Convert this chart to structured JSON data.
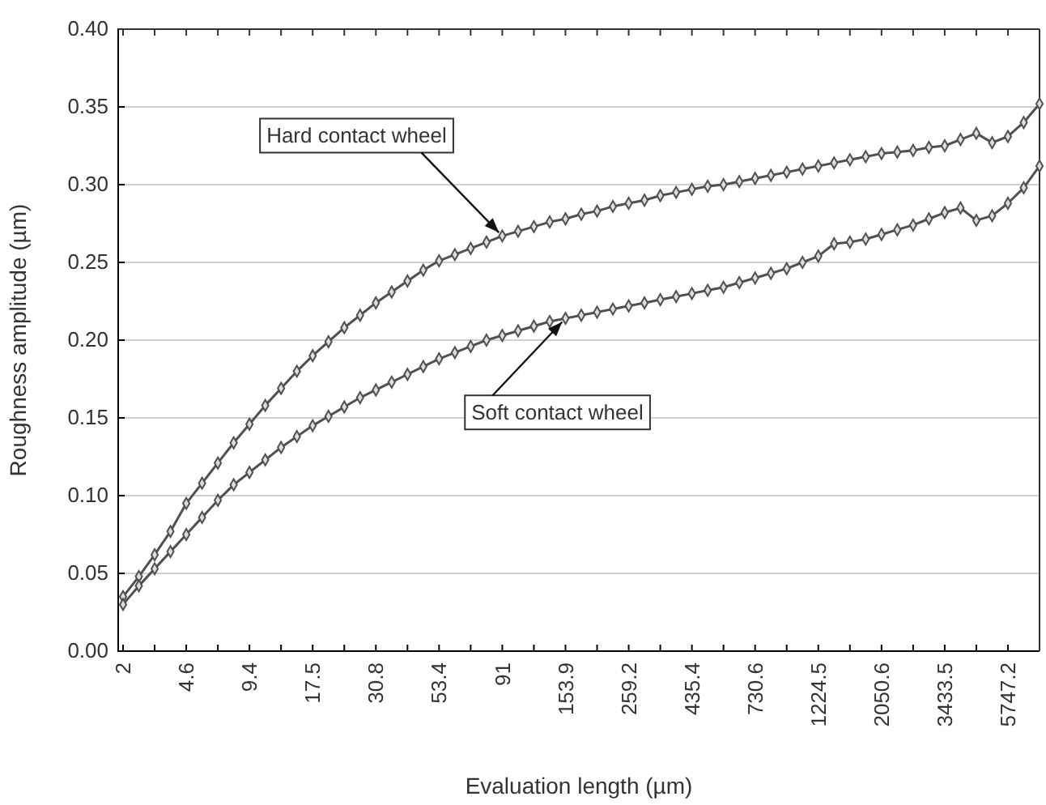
{
  "chart_data": {
    "type": "line",
    "xlabel": "Evaluation length (µm)",
    "ylabel": "Roughness amplitude (µm)",
    "categories": [
      "2",
      null,
      null,
      null,
      "4.6",
      null,
      null,
      null,
      "9.4",
      null,
      null,
      null,
      "17.5",
      null,
      null,
      null,
      "30.8",
      null,
      null,
      null,
      "53.4",
      null,
      null,
      null,
      "91",
      null,
      null,
      null,
      "153.9",
      null,
      null,
      null,
      "259.2",
      null,
      null,
      null,
      "435.4",
      null,
      null,
      null,
      "730.6",
      null,
      null,
      null,
      "1224.5",
      null,
      null,
      null,
      "2050.6",
      null,
      null,
      null,
      "3433.5",
      null,
      null,
      null,
      "5747.2",
      null,
      null
    ],
    "series": [
      {
        "color": "#505050",
        "values": [
          0.035,
          0.048,
          0.062,
          0.077,
          0.095,
          0.108,
          0.121,
          0.134,
          0.146,
          0.158,
          0.169,
          0.18,
          0.19,
          0.199,
          0.208,
          0.216,
          0.224,
          0.231,
          0.238,
          0.245,
          0.251,
          0.255,
          0.259,
          0.263,
          0.267,
          0.27,
          0.273,
          0.276,
          0.278,
          0.281,
          0.283,
          0.286,
          0.288,
          0.29,
          0.293,
          0.295,
          0.297,
          0.299,
          0.3,
          0.302,
          0.304,
          0.306,
          0.308,
          0.31,
          0.312,
          0.314,
          0.316,
          0.318,
          0.32,
          0.321,
          0.322,
          0.324,
          0.325,
          0.329,
          0.333,
          0.327,
          0.331,
          0.34,
          0.352
        ]
      },
      {
        "color": "#505050",
        "values": [
          0.03,
          0.042,
          0.053,
          0.064,
          0.075,
          0.086,
          0.097,
          0.107,
          0.115,
          0.123,
          0.131,
          0.138,
          0.145,
          0.151,
          0.157,
          0.163,
          0.168,
          0.173,
          0.178,
          0.183,
          0.188,
          0.192,
          0.196,
          0.2,
          0.203,
          0.206,
          0.209,
          0.212,
          0.214,
          0.216,
          0.218,
          0.22,
          0.222,
          0.224,
          0.226,
          0.228,
          0.23,
          0.232,
          0.234,
          0.237,
          0.24,
          0.243,
          0.246,
          0.25,
          0.254,
          0.262,
          0.263,
          0.265,
          0.268,
          0.271,
          0.274,
          0.278,
          0.282,
          0.285,
          0.277,
          0.28,
          0.288,
          0.298,
          0.312
        ]
      }
    ],
    "ylim": [
      0,
      0.4
    ],
    "yticks": [
      {
        "value": 0,
        "label": "0.00"
      },
      {
        "value": 0.05,
        "label": "0.05"
      },
      {
        "value": 0.1,
        "label": "0.10"
      },
      {
        "value": 0.15,
        "label": "0.15"
      },
      {
        "value": 0.2,
        "label": "0.20"
      },
      {
        "value": 0.25,
        "label": "0.25"
      },
      {
        "value": 0.3,
        "label": "0.30"
      },
      {
        "value": 0.35,
        "label": "0.35"
      },
      {
        "value": 0.4,
        "label": "0.40"
      }
    ],
    "grid": "y",
    "marker": "diamond",
    "line_style": "solid",
    "annotations": [
      {
        "text": "Hard contact wheel",
        "x": "91",
        "y": 0.267
      },
      {
        "text": "Soft contact wheel",
        "x": "153.9",
        "y": 0.214
      }
    ]
  }
}
